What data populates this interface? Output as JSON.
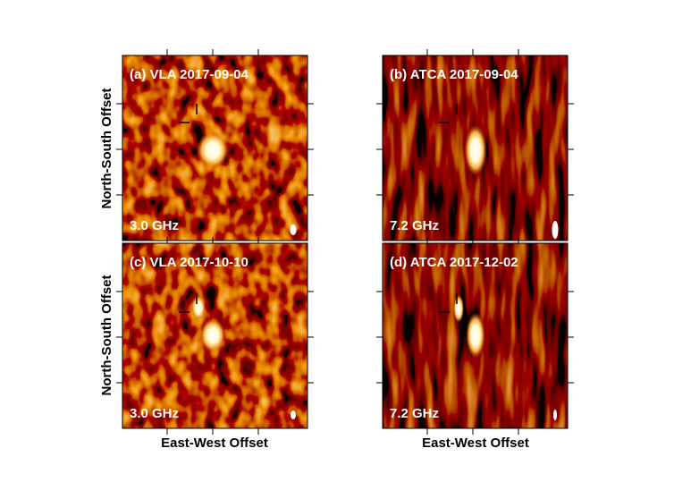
{
  "figure": {
    "panels": [
      {
        "label": "(a) VLA 2017-09-04",
        "frequency": "3.0 GHz"
      },
      {
        "label": "(b) ATCA 2017-09-04",
        "frequency": "7.2 GHz"
      },
      {
        "label": "(c) VLA 2017-10-10",
        "frequency": "3.0 GHz"
      },
      {
        "label": "(d) ATCA 2017-12-02",
        "frequency": "7.2 GHz"
      }
    ],
    "y_label": "North-South Offset",
    "x_label": "East-West Offset"
  }
}
